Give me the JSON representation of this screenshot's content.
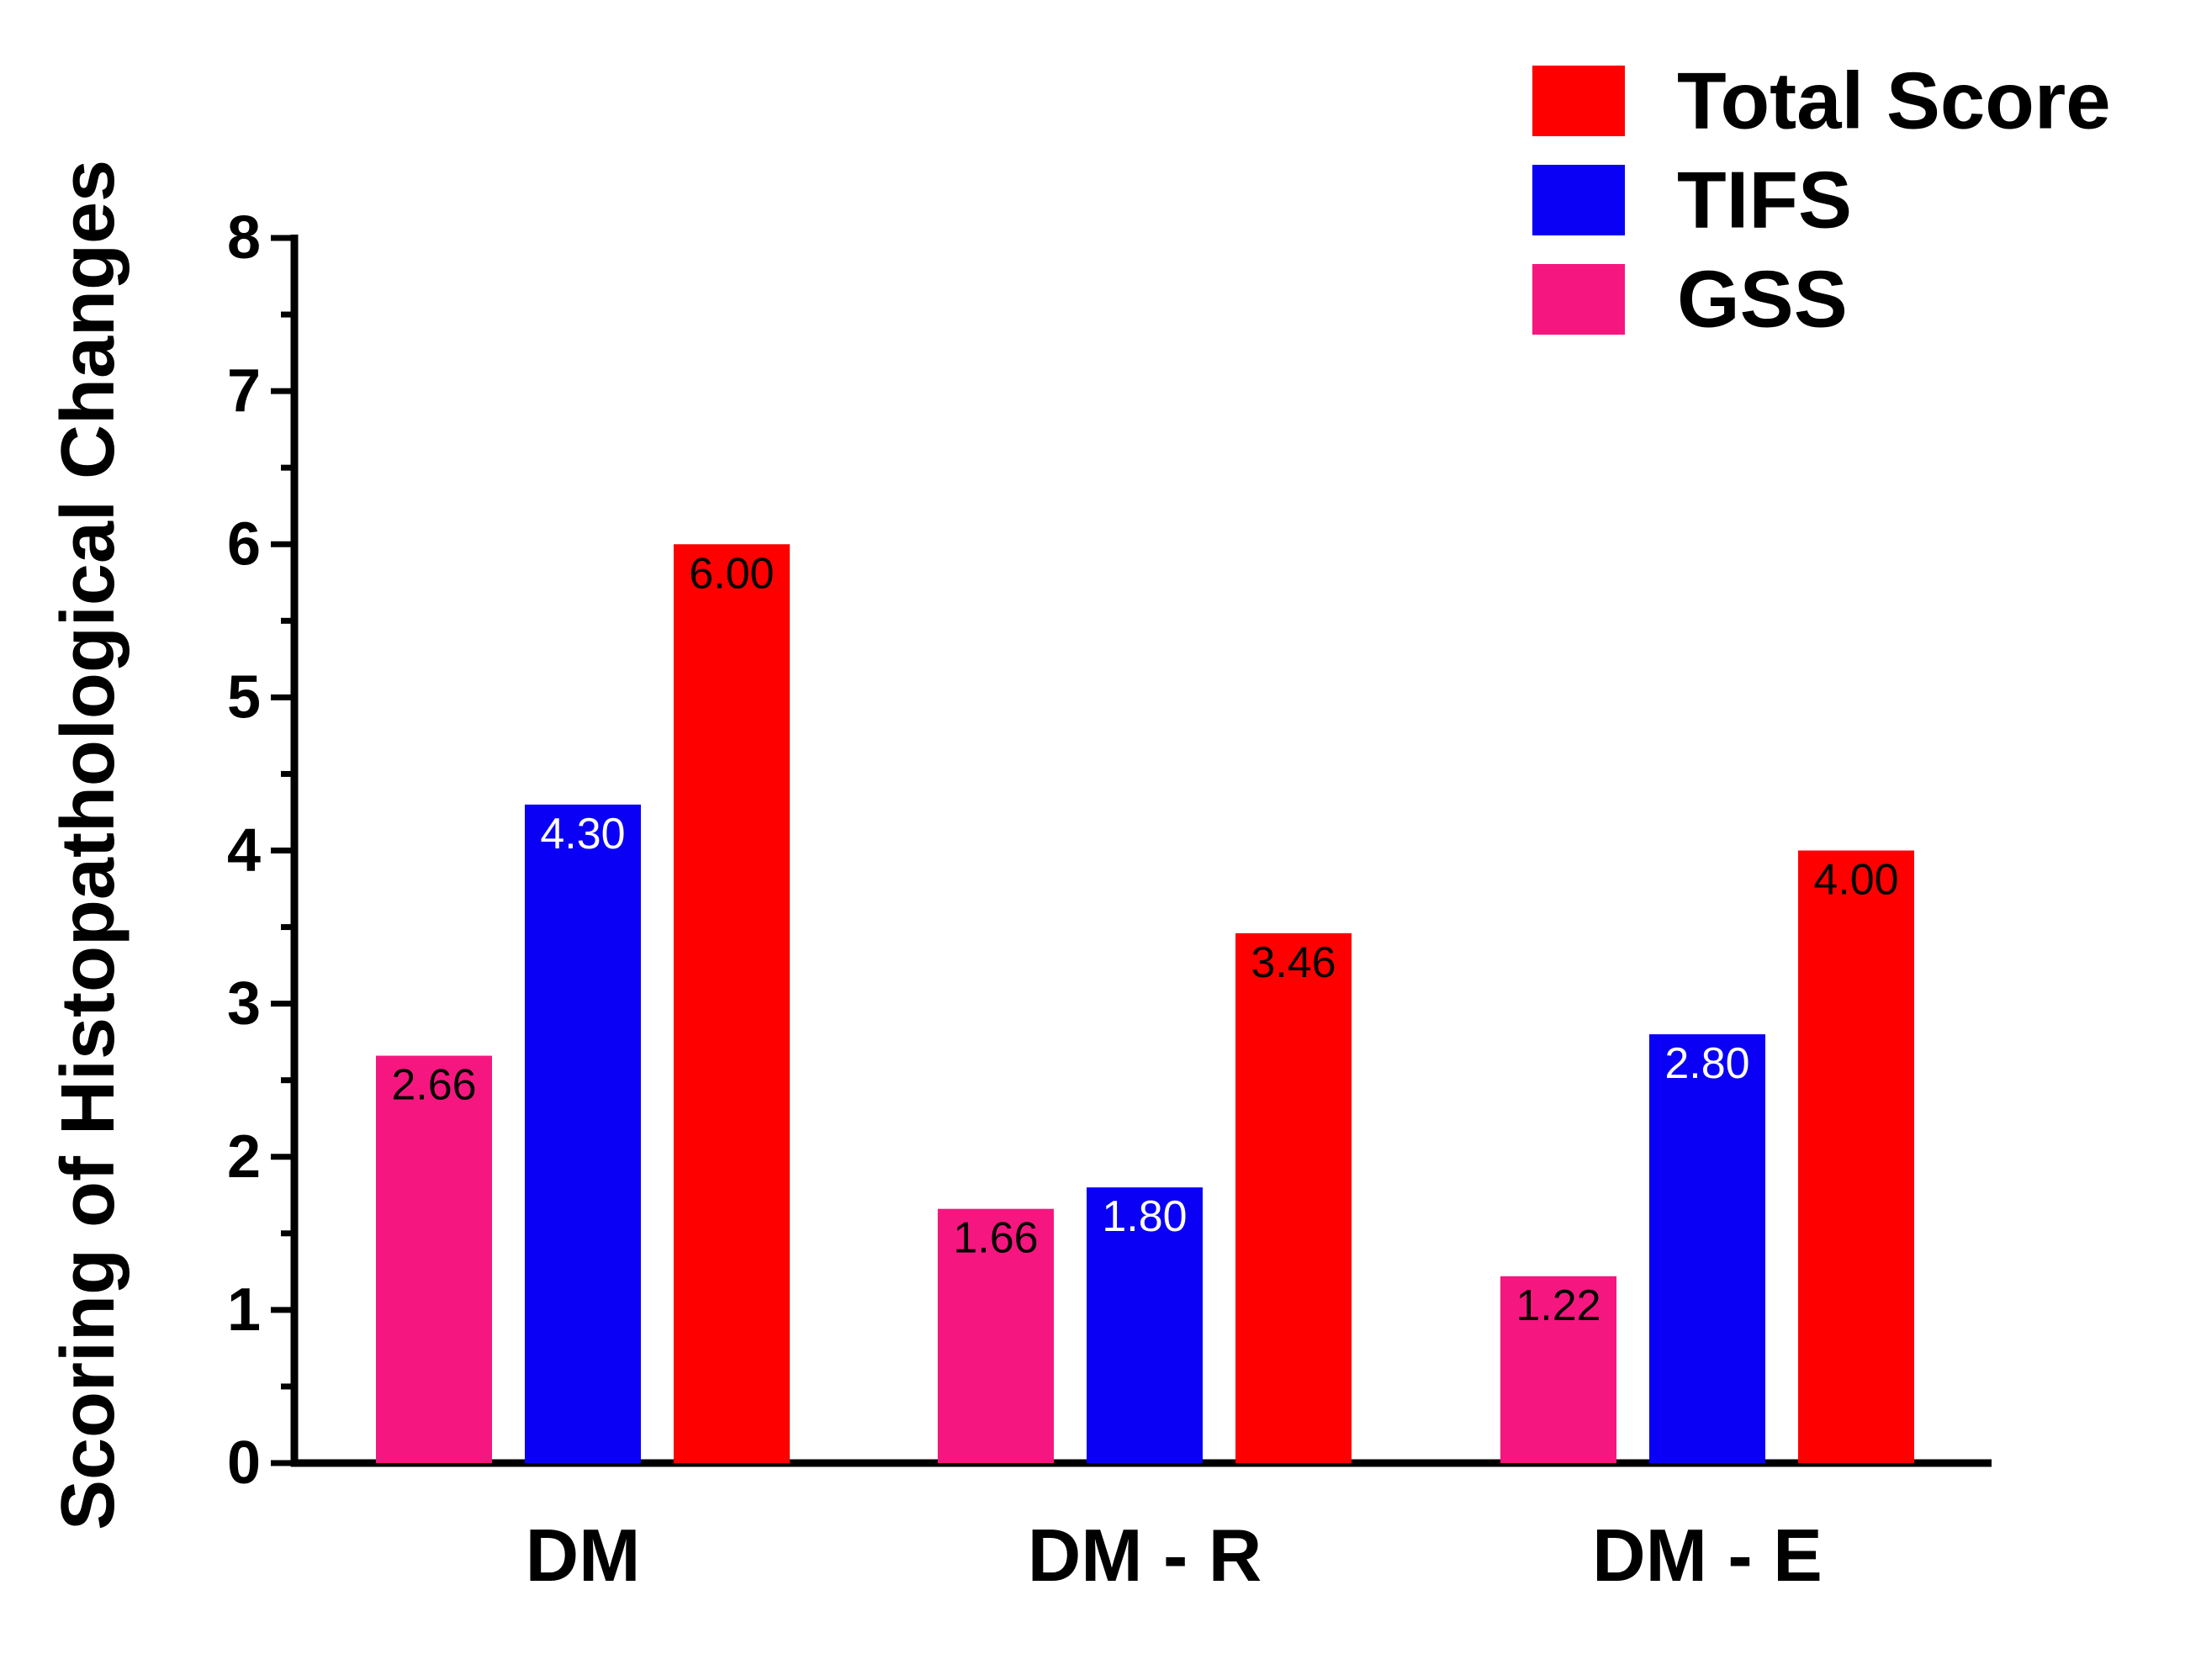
{
  "chart_data": {
    "type": "bar",
    "title": "",
    "xlabel": "",
    "ylabel": "Scoring of Histopathological Changes",
    "ylim": [
      0,
      8
    ],
    "yticks": [
      0,
      1,
      2,
      3,
      4,
      5,
      6,
      7,
      8
    ],
    "y_minor_step": 0.5,
    "grid": false,
    "legend_position": "top-right",
    "categories": [
      "DM",
      "DM - R",
      "DM - E"
    ],
    "series": [
      {
        "name": "GSS",
        "color": "#f5177f",
        "label_color": "#000000",
        "values": [
          2.66,
          1.66,
          1.22
        ],
        "labels": [
          "2.66",
          "1.66",
          "1.22"
        ]
      },
      {
        "name": "TIFS",
        "color": "#0a00f5",
        "label_color": "#ffffff",
        "values": [
          4.3,
          1.8,
          2.8
        ],
        "labels": [
          "4.30",
          "1.80",
          "2.80"
        ]
      },
      {
        "name": "Total Score",
        "color": "#ff0000",
        "label_color": "#000000",
        "values": [
          6.0,
          3.46,
          4.0
        ],
        "labels": [
          "6.00",
          "3.46",
          "4.00"
        ]
      }
    ],
    "legend_order": [
      "Total Score",
      "TIFS",
      "GSS"
    ]
  }
}
